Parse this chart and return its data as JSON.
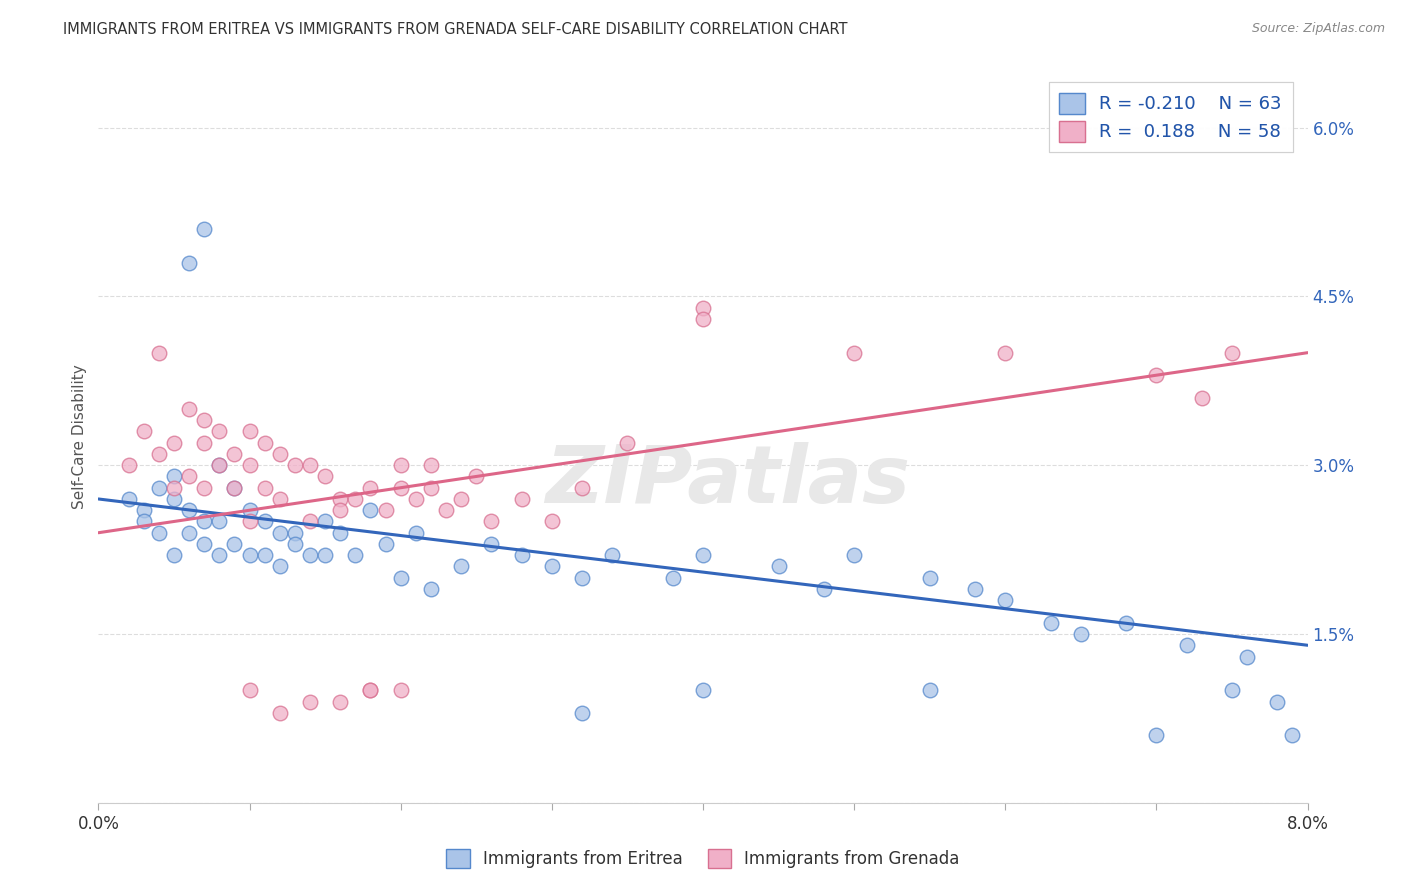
{
  "title": "IMMIGRANTS FROM ERITREA VS IMMIGRANTS FROM GRENADA SELF-CARE DISABILITY CORRELATION CHART",
  "source": "Source: ZipAtlas.com",
  "ylabel": "Self-Care Disability",
  "xlim": [
    0.0,
    0.08
  ],
  "ylim": [
    0.0,
    0.065
  ],
  "yticks": [
    0.0,
    0.015,
    0.03,
    0.045,
    0.06
  ],
  "ytick_labels": [
    "",
    "1.5%",
    "3.0%",
    "4.5%",
    "6.0%"
  ],
  "xtick_vals": [
    0.0,
    0.01,
    0.02,
    0.03,
    0.04,
    0.05,
    0.06,
    0.07,
    0.08
  ],
  "color_eritrea_fill": "#aac4e8",
  "color_eritrea_edge": "#5588cc",
  "color_grenada_fill": "#f0b0c8",
  "color_grenada_edge": "#d87090",
  "line_color_eritrea": "#3366bb",
  "line_color_grenada": "#dd6688",
  "watermark": "ZIPatlas",
  "background_color": "#ffffff",
  "grid_color": "#dddddd",
  "eritrea_x": [
    0.002,
    0.003,
    0.003,
    0.004,
    0.004,
    0.005,
    0.005,
    0.005,
    0.006,
    0.006,
    0.006,
    0.007,
    0.007,
    0.007,
    0.008,
    0.008,
    0.008,
    0.009,
    0.009,
    0.01,
    0.01,
    0.011,
    0.011,
    0.012,
    0.012,
    0.013,
    0.013,
    0.014,
    0.015,
    0.015,
    0.016,
    0.017,
    0.018,
    0.019,
    0.02,
    0.021,
    0.022,
    0.024,
    0.026,
    0.028,
    0.03,
    0.032,
    0.034,
    0.038,
    0.04,
    0.045,
    0.048,
    0.05,
    0.055,
    0.058,
    0.06,
    0.063,
    0.065,
    0.068,
    0.072,
    0.075,
    0.076,
    0.078,
    0.079,
    0.032,
    0.04,
    0.055,
    0.07
  ],
  "eritrea_y": [
    0.027,
    0.026,
    0.025,
    0.028,
    0.024,
    0.029,
    0.027,
    0.022,
    0.026,
    0.024,
    0.048,
    0.051,
    0.025,
    0.023,
    0.03,
    0.025,
    0.022,
    0.028,
    0.023,
    0.026,
    0.022,
    0.025,
    0.022,
    0.024,
    0.021,
    0.024,
    0.023,
    0.022,
    0.025,
    0.022,
    0.024,
    0.022,
    0.026,
    0.023,
    0.02,
    0.024,
    0.019,
    0.021,
    0.023,
    0.022,
    0.021,
    0.02,
    0.022,
    0.02,
    0.022,
    0.021,
    0.019,
    0.022,
    0.02,
    0.019,
    0.018,
    0.016,
    0.015,
    0.016,
    0.014,
    0.01,
    0.013,
    0.009,
    0.006,
    0.008,
    0.01,
    0.01,
    0.006
  ],
  "grenada_x": [
    0.002,
    0.003,
    0.004,
    0.004,
    0.005,
    0.005,
    0.006,
    0.006,
    0.007,
    0.007,
    0.007,
    0.008,
    0.008,
    0.009,
    0.009,
    0.01,
    0.01,
    0.011,
    0.011,
    0.012,
    0.012,
    0.013,
    0.014,
    0.015,
    0.016,
    0.016,
    0.017,
    0.018,
    0.019,
    0.02,
    0.021,
    0.022,
    0.023,
    0.024,
    0.025,
    0.026,
    0.028,
    0.03,
    0.032,
    0.04,
    0.01,
    0.014,
    0.016,
    0.018,
    0.02,
    0.022,
    0.04,
    0.05,
    0.06,
    0.07,
    0.073,
    0.075,
    0.02,
    0.035,
    0.018,
    0.014,
    0.012,
    0.01
  ],
  "grenada_y": [
    0.03,
    0.033,
    0.031,
    0.04,
    0.032,
    0.028,
    0.035,
    0.029,
    0.034,
    0.032,
    0.028,
    0.033,
    0.03,
    0.031,
    0.028,
    0.033,
    0.03,
    0.032,
    0.028,
    0.031,
    0.027,
    0.03,
    0.03,
    0.029,
    0.027,
    0.026,
    0.027,
    0.028,
    0.026,
    0.028,
    0.027,
    0.028,
    0.026,
    0.027,
    0.029,
    0.025,
    0.027,
    0.025,
    0.028,
    0.044,
    0.025,
    0.025,
    0.009,
    0.01,
    0.01,
    0.03,
    0.043,
    0.04,
    0.04,
    0.038,
    0.036,
    0.04,
    0.03,
    0.032,
    0.01,
    0.009,
    0.008,
    0.01
  ],
  "eritrea_line_x0": 0.0,
  "eritrea_line_x1": 0.08,
  "eritrea_line_y0": 0.027,
  "eritrea_line_y1": 0.014,
  "grenada_line_x0": 0.0,
  "grenada_line_x1": 0.08,
  "grenada_line_y0": 0.024,
  "grenada_line_y1": 0.04
}
